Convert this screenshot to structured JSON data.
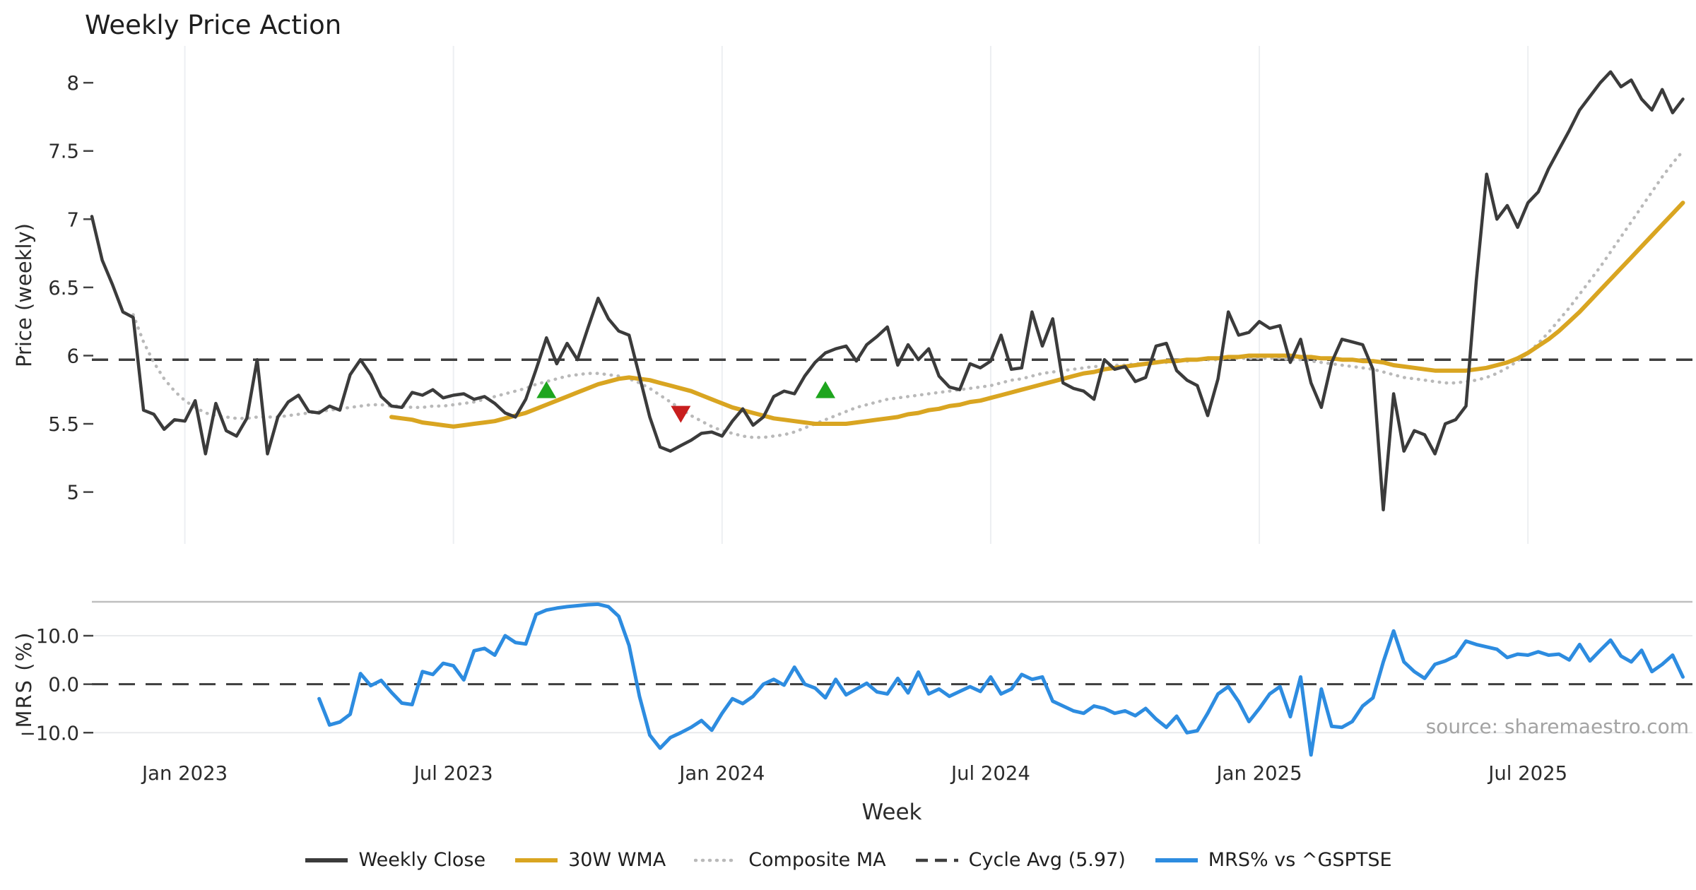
{
  "title": "Weekly Price Action",
  "source": "source: sharemaestro.com",
  "colors": {
    "price": "#3b3b3b",
    "wma": "#d9a521",
    "composite": "#b9b9b9",
    "cycle_dash": "#3e3e3e",
    "mrs": "#2d8ce0",
    "marker_up": "#1ea51e",
    "marker_down": "#c81e1e",
    "grid_vertical": "#edeff2",
    "grid_horizontal": "#e8eaec",
    "panel_spine": "#bfbfbf",
    "tick_text": "#2b2b2b",
    "tick_mark": "#444444",
    "source_text": "#a3a3a3"
  },
  "legend": {
    "items": [
      {
        "label": "Weekly Close",
        "style": "solid",
        "color": "#3b3b3b"
      },
      {
        "label": "30W WMA",
        "style": "solid",
        "color": "#d9a521"
      },
      {
        "label": "Composite MA",
        "style": "dotted",
        "color": "#b9b9b9"
      },
      {
        "label": "Cycle Avg (5.97)",
        "style": "dashed",
        "color": "#3e3e3e"
      },
      {
        "label": "MRS% vs ^GSPTSE",
        "style": "solid",
        "color": "#2d8ce0"
      }
    ]
  },
  "chart_data": {
    "type": "line",
    "title": "Weekly Price Action",
    "x_axis": {
      "label": "Week",
      "unit": "weekly",
      "ticks": [
        {
          "week": 9,
          "label": "Jan 2023"
        },
        {
          "week": 35,
          "label": "Jul 2023"
        },
        {
          "week": 61,
          "label": "Jan 2024"
        },
        {
          "week": 87,
          "label": "Jul 2024"
        },
        {
          "week": 113,
          "label": "Jan 2025"
        },
        {
          "week": 139,
          "label": "Jul 2025"
        }
      ]
    },
    "panels": [
      {
        "id": "price",
        "ylabel": "Price (weekly)",
        "ylim": [
          4.62,
          8.27
        ],
        "grid": "vertical",
        "yticks": [
          {
            "v": 5,
            "label": "5"
          },
          {
            "v": 5.5,
            "label": "5.5"
          },
          {
            "v": 6,
            "label": "6"
          },
          {
            "v": 6.5,
            "label": "6.5"
          },
          {
            "v": 7,
            "label": "7"
          },
          {
            "v": 7.5,
            "label": "7.5"
          },
          {
            "v": 8,
            "label": "8"
          }
        ],
        "ref_line": {
          "value": 5.97,
          "label": "Cycle Avg (5.97)",
          "style": "dashed"
        },
        "series": [
          {
            "name": "Composite MA",
            "style": "dotted",
            "color": "#b9b9b9",
            "width": 4.5,
            "start_week": 4,
            "values": [
              6.3,
              6.1,
              5.95,
              5.83,
              5.74,
              5.67,
              5.62,
              5.58,
              5.56,
              5.55,
              5.54,
              5.54,
              5.55,
              5.55,
              5.55,
              5.56,
              5.57,
              5.58,
              5.59,
              5.6,
              5.61,
              5.62,
              5.63,
              5.64,
              5.64,
              5.63,
              5.63,
              5.62,
              5.62,
              5.63,
              5.63,
              5.64,
              5.65,
              5.66,
              5.68,
              5.7,
              5.72,
              5.74,
              5.76,
              5.79,
              5.81,
              5.83,
              5.85,
              5.86,
              5.87,
              5.87,
              5.86,
              5.85,
              5.83,
              5.8,
              5.76,
              5.71,
              5.66,
              5.61,
              5.56,
              5.52,
              5.48,
              5.45,
              5.43,
              5.41,
              5.4,
              5.4,
              5.41,
              5.42,
              5.44,
              5.47,
              5.5,
              5.53,
              5.56,
              5.59,
              5.62,
              5.64,
              5.66,
              5.68,
              5.69,
              5.7,
              5.71,
              5.72,
              5.73,
              5.74,
              5.75,
              5.76,
              5.77,
              5.78,
              5.8,
              5.82,
              5.83,
              5.85,
              5.87,
              5.88,
              5.89,
              5.9,
              5.91,
              5.92,
              5.92,
              5.93,
              5.93,
              5.94,
              5.94,
              5.95,
              5.95,
              5.96,
              5.96,
              5.97,
              5.97,
              5.97,
              5.98,
              5.98,
              5.98,
              5.98,
              5.98,
              5.98,
              5.97,
              5.97,
              5.96,
              5.95,
              5.94,
              5.93,
              5.92,
              5.91,
              5.9,
              5.88,
              5.86,
              5.84,
              5.83,
              5.82,
              5.81,
              5.8,
              5.8,
              5.81,
              5.82,
              5.84,
              5.87,
              5.91,
              5.96,
              6.02,
              6.09,
              6.17,
              6.26,
              6.35,
              6.45,
              6.55,
              6.65,
              6.76,
              6.87,
              6.98,
              7.09,
              7.2,
              7.31,
              7.41,
              7.5
            ]
          },
          {
            "name": "30W WMA",
            "style": "solid",
            "color": "#d9a521",
            "width": 6,
            "start_week": 29,
            "values": [
              5.55,
              5.54,
              5.53,
              5.51,
              5.5,
              5.49,
              5.48,
              5.49,
              5.5,
              5.51,
              5.52,
              5.54,
              5.56,
              5.58,
              5.61,
              5.64,
              5.67,
              5.7,
              5.73,
              5.76,
              5.79,
              5.81,
              5.83,
              5.84,
              5.83,
              5.82,
              5.8,
              5.78,
              5.76,
              5.74,
              5.71,
              5.68,
              5.65,
              5.62,
              5.6,
              5.58,
              5.56,
              5.54,
              5.53,
              5.52,
              5.51,
              5.5,
              5.5,
              5.5,
              5.5,
              5.51,
              5.52,
              5.53,
              5.54,
              5.55,
              5.57,
              5.58,
              5.6,
              5.61,
              5.63,
              5.64,
              5.66,
              5.67,
              5.69,
              5.71,
              5.73,
              5.75,
              5.77,
              5.79,
              5.81,
              5.83,
              5.85,
              5.87,
              5.88,
              5.9,
              5.91,
              5.92,
              5.93,
              5.94,
              5.95,
              5.96,
              5.96,
              5.97,
              5.97,
              5.98,
              5.98,
              5.99,
              5.99,
              6.0,
              6.0,
              6.0,
              6.0,
              6.0,
              5.99,
              5.99,
              5.98,
              5.98,
              5.97,
              5.97,
              5.96,
              5.96,
              5.95,
              5.93,
              5.92,
              5.91,
              5.9,
              5.89,
              5.89,
              5.89,
              5.89,
              5.9,
              5.91,
              5.93,
              5.95,
              5.98,
              6.02,
              6.07,
              6.12,
              6.18,
              6.25,
              6.32,
              6.4,
              6.48,
              6.56,
              6.64,
              6.72,
              6.8,
              6.88,
              6.96,
              7.04,
              7.12
            ]
          },
          {
            "name": "Weekly Close",
            "style": "solid",
            "color": "#3b3b3b",
            "width": 4.5,
            "start_week": 0,
            "values": [
              7.02,
              6.7,
              6.52,
              6.32,
              6.28,
              5.6,
              5.57,
              5.46,
              5.53,
              5.52,
              5.67,
              5.28,
              5.65,
              5.45,
              5.41,
              5.54,
              5.97,
              5.28,
              5.55,
              5.66,
              5.71,
              5.59,
              5.58,
              5.63,
              5.6,
              5.86,
              5.97,
              5.86,
              5.7,
              5.63,
              5.62,
              5.73,
              5.71,
              5.75,
              5.69,
              5.71,
              5.72,
              5.68,
              5.7,
              5.65,
              5.58,
              5.55,
              5.68,
              5.9,
              6.13,
              5.94,
              6.09,
              5.97,
              6.2,
              6.42,
              6.27,
              6.18,
              6.15,
              5.85,
              5.55,
              5.33,
              5.3,
              5.34,
              5.38,
              5.43,
              5.44,
              5.41,
              5.52,
              5.61,
              5.49,
              5.55,
              5.7,
              5.74,
              5.72,
              5.85,
              5.95,
              6.02,
              6.05,
              6.07,
              5.96,
              6.08,
              6.14,
              6.21,
              5.93,
              6.08,
              5.97,
              6.05,
              5.85,
              5.77,
              5.75,
              5.94,
              5.91,
              5.96,
              6.15,
              5.9,
              5.91,
              6.32,
              6.07,
              6.27,
              5.8,
              5.76,
              5.74,
              5.68,
              5.97,
              5.9,
              5.92,
              5.81,
              5.84,
              6.07,
              6.09,
              5.89,
              5.82,
              5.78,
              5.56,
              5.83,
              6.32,
              6.15,
              6.17,
              6.25,
              6.2,
              6.22,
              5.95,
              6.12,
              5.8,
              5.62,
              5.95,
              6.12,
              6.1,
              6.08,
              5.9,
              4.87,
              5.72,
              5.3,
              5.45,
              5.42,
              5.28,
              5.5,
              5.53,
              5.63,
              6.55,
              7.33,
              7.0,
              7.1,
              6.94,
              7.12,
              7.2,
              7.37,
              7.51,
              7.65,
              7.8,
              7.9,
              8.0,
              8.08,
              7.97,
              8.02,
              7.88,
              7.8,
              7.95,
              7.78,
              7.88
            ]
          }
        ],
        "markers": [
          {
            "week": 44,
            "value": 5.74,
            "dir": "up",
            "color": "#1ea51e"
          },
          {
            "week": 57,
            "value": 5.58,
            "dir": "down",
            "color": "#c81e1e"
          },
          {
            "week": 71,
            "value": 5.74,
            "dir": "up",
            "color": "#1ea51e"
          }
        ]
      },
      {
        "id": "mrs",
        "ylabel": "MRS (%)",
        "ylim": [
          -15.5,
          17
        ],
        "grid": "horizontal",
        "yticks": [
          {
            "v": 10,
            "label": "10.0"
          },
          {
            "v": 0,
            "label": "0.0"
          },
          {
            "v": -10,
            "label": "−10.0"
          }
        ],
        "ref_line": {
          "value": 0,
          "style": "dashed"
        },
        "series": [
          {
            "name": "MRS% vs ^GSPTSE",
            "style": "solid",
            "color": "#2d8ce0",
            "width": 5,
            "start_week": 22,
            "values": [
              -3.0,
              -8.4,
              -7.8,
              -6.2,
              2.2,
              -0.3,
              0.8,
              -1.7,
              -3.9,
              -4.2,
              2.6,
              2.0,
              4.3,
              3.8,
              0.9,
              6.9,
              7.4,
              6.0,
              10.0,
              8.6,
              8.3,
              14.4,
              15.3,
              15.7,
              16.0,
              16.2,
              16.4,
              16.5,
              16.0,
              14.0,
              8.0,
              -2.5,
              -10.5,
              -13.2,
              -11.0,
              -10.0,
              -8.9,
              -7.5,
              -9.5,
              -6.0,
              -3.0,
              -4.0,
              -2.5,
              0.0,
              1.0,
              -0.2,
              3.5,
              0.0,
              -0.8,
              -2.8,
              1.0,
              -2.2,
              -1.0,
              0.2,
              -1.6,
              -2.0,
              1.2,
              -1.8,
              2.5,
              -2.0,
              -1.0,
              -2.5,
              -1.5,
              -0.5,
              -1.5,
              1.5,
              -2.0,
              -1.0,
              2.0,
              1.0,
              1.5,
              -3.5,
              -4.5,
              -5.5,
              -6.0,
              -4.5,
              -5.0,
              -6.0,
              -5.5,
              -6.5,
              -5.0,
              -7.2,
              -8.9,
              -6.6,
              -10.0,
              -9.6,
              -6.0,
              -2.0,
              -0.5,
              -3.6,
              -7.7,
              -5.0,
              -2.0,
              -0.5,
              -6.7,
              1.5,
              -14.6,
              -1.0,
              -8.7,
              -8.9,
              -7.7,
              -4.5,
              -2.8,
              4.6,
              11.0,
              4.6,
              2.6,
              1.2,
              4.1,
              4.8,
              5.8,
              8.9,
              8.2,
              7.7,
              7.2,
              5.5,
              6.2,
              6.0,
              6.7,
              6.0,
              6.2,
              5.0,
              8.2,
              4.8,
              7.0,
              9.1,
              5.8,
              4.6,
              7.0,
              2.6,
              4.1,
              6.0,
              1.5
            ]
          }
        ]
      }
    ]
  }
}
